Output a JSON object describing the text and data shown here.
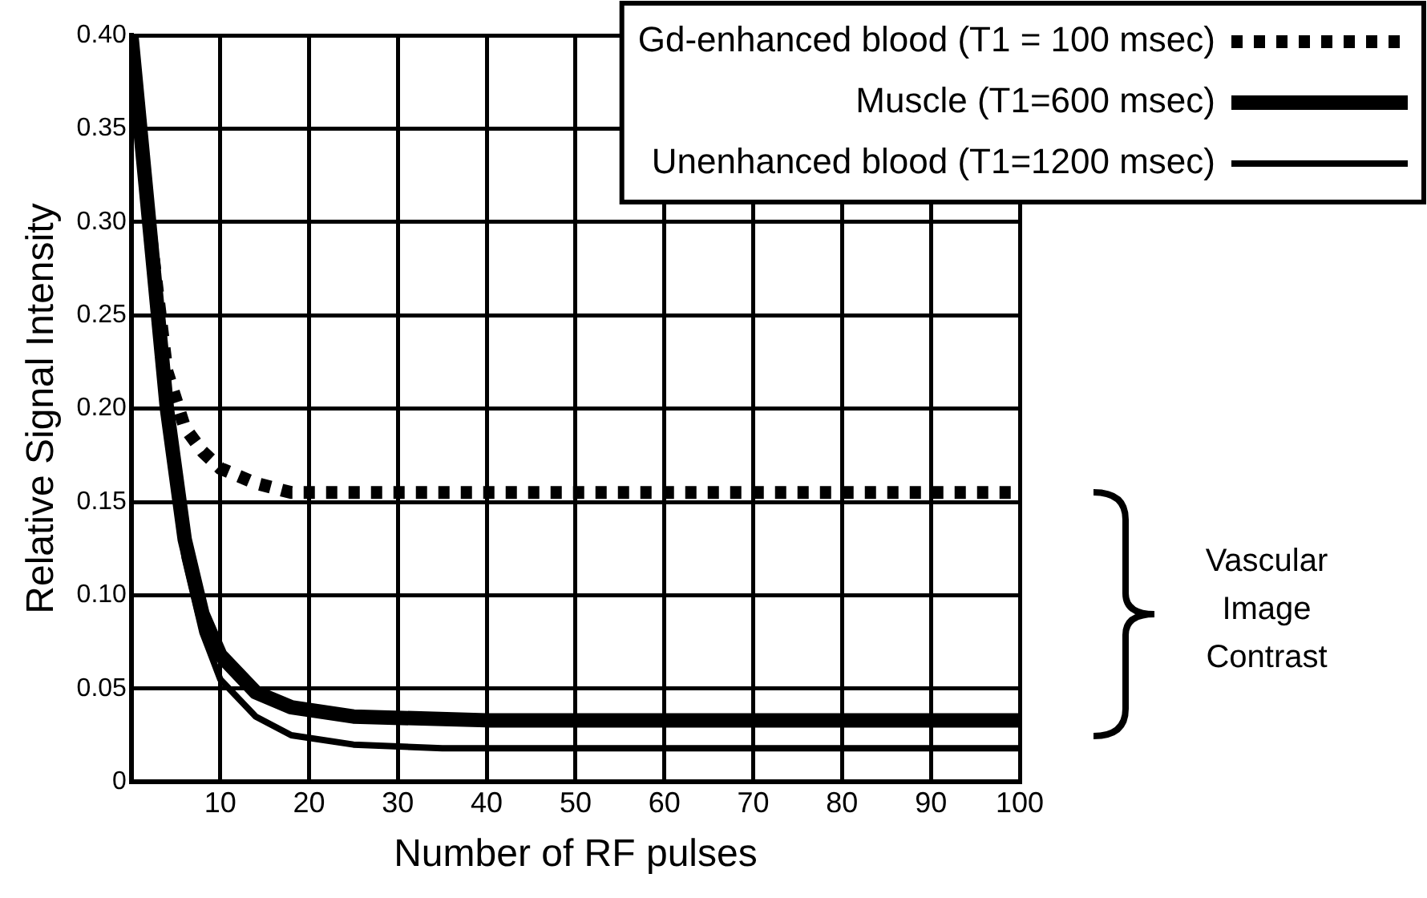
{
  "chart_data": {
    "type": "line",
    "xlabel": "Number of RF pulses",
    "ylabel": "Relative Signal Intensity",
    "xlim": [
      0,
      100
    ],
    "xticks": [
      10,
      20,
      30,
      40,
      50,
      60,
      70,
      80,
      90,
      100
    ],
    "ylim": [
      0,
      0.4
    ],
    "yticks": [
      0,
      0.05,
      {
        "value": 0.1,
        "label": "0.10"
      },
      0.15,
      {
        "value": 0.2,
        "label": "0.20"
      },
      0.25,
      {
        "value": 0.3,
        "label": "0.30"
      },
      0.35,
      {
        "value": 0.4,
        "label": "0.40"
      }
    ],
    "grid": true,
    "legend": "top right",
    "marker": "none",
    "series": [
      {
        "name": "Gd-enhanced blood (T1 = 100 msec)",
        "color": "#000000",
        "line_style": "dotted",
        "x": [
          0,
          2,
          4,
          6,
          8,
          10,
          14,
          18,
          25,
          100
        ],
        "values": [
          0.4,
          0.3,
          0.22,
          0.19,
          0.177,
          0.168,
          0.16,
          0.155,
          0.155,
          0.155
        ]
      },
      {
        "name": "Muscle (T1=600 msec)",
        "color": "#000000",
        "line_style": "solid",
        "x": [
          0,
          2,
          4,
          6,
          8,
          10,
          14,
          18,
          25,
          40,
          100
        ],
        "values": [
          0.4,
          0.3,
          0.2,
          0.13,
          0.09,
          0.068,
          0.048,
          0.04,
          0.035,
          0.033,
          0.033
        ]
      },
      {
        "name": "Unenhanced blood (T1=1200 msec)",
        "color": "#000000",
        "line_style": "solid",
        "x": [
          0,
          2,
          4,
          6,
          8,
          10,
          14,
          18,
          25,
          35,
          100
        ],
        "values": [
          0.4,
          0.29,
          0.19,
          0.12,
          0.08,
          0.055,
          0.035,
          0.025,
          0.02,
          0.018,
          0.018
        ]
      }
    ],
    "annotations": [
      "Vascular Image Contrast"
    ]
  }
}
